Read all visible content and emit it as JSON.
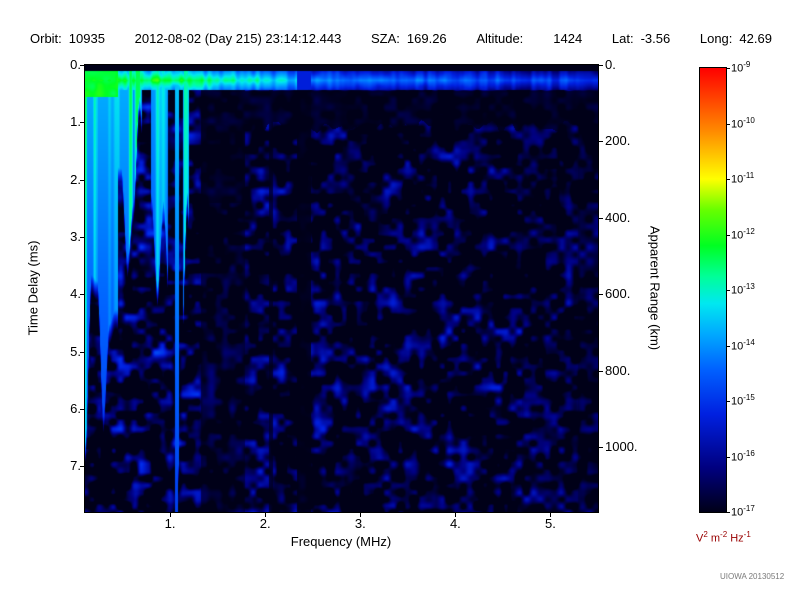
{
  "header": {
    "segments": [
      {
        "label": "Orbit:",
        "value": "10935"
      },
      {
        "label": "",
        "value": "2012-08-02 (Day 215) 23:14:12.443"
      },
      {
        "label": "SZA:",
        "value": "169.26"
      },
      {
        "label": "Altitude:",
        "value": "1424",
        "wide_gap": true
      },
      {
        "label": "Lat:",
        "value": "-3.56"
      },
      {
        "label": "Long:",
        "value": "42.69"
      }
    ]
  },
  "chart_data": {
    "type": "heatmap",
    "title": "",
    "xlabel": "Frequency (MHz)",
    "ylabel_left": "Time Delay (ms)",
    "ylabel_right": "Apparent Range (km)",
    "x_range_mhz": [
      0.105,
      5.5
    ],
    "y_range_ms": [
      0,
      7.8
    ],
    "km_per_ms": 150,
    "legend_position": "right",
    "x_ticks": [
      {
        "f": 1,
        "label": "1."
      },
      {
        "f": 2,
        "label": "2."
      },
      {
        "f": 3,
        "label": "3."
      },
      {
        "f": 4,
        "label": "4."
      },
      {
        "f": 5,
        "label": "5."
      }
    ],
    "y_ticks": [
      {
        "ms": 0,
        "label": "0."
      },
      {
        "ms": 1,
        "label": "1."
      },
      {
        "ms": 2,
        "label": "2."
      },
      {
        "ms": 3,
        "label": "3."
      },
      {
        "ms": 4,
        "label": "4."
      },
      {
        "ms": 5,
        "label": "5."
      },
      {
        "ms": 6,
        "label": "6."
      },
      {
        "ms": 7,
        "label": "7."
      }
    ],
    "right_ticks": [
      {
        "km": 0,
        "label": "0."
      },
      {
        "km": 200,
        "label": "200."
      },
      {
        "km": 400,
        "label": "400."
      },
      {
        "km": 600,
        "label": "600."
      },
      {
        "km": 800,
        "label": "800."
      },
      {
        "km": 1000,
        "label": "1000."
      }
    ],
    "colorbar": {
      "scale": "log10",
      "range_exp": [
        -17,
        -9
      ],
      "scale_exponents": [
        "-9",
        "-10",
        "-11",
        "-12",
        "-13",
        "-14",
        "-15",
        "-16",
        "-17"
      ],
      "units": [
        {
          "base": "V",
          "exp": "2"
        },
        {
          "base": "m",
          "exp": "-2"
        },
        {
          "base": "Hz",
          "exp": "-1"
        }
      ],
      "units_color": "#990000",
      "colormap": [
        [
          0.0,
          "#000018"
        ],
        [
          0.1,
          "#000080"
        ],
        [
          0.22,
          "#0020e0"
        ],
        [
          0.32,
          "#0060ff"
        ],
        [
          0.4,
          "#00a8ff"
        ],
        [
          0.47,
          "#00e8f0"
        ],
        [
          0.53,
          "#00ff99"
        ],
        [
          0.6,
          "#00ff22"
        ],
        [
          0.68,
          "#66ff00"
        ],
        [
          0.75,
          "#ffff00"
        ],
        [
          0.86,
          "#ff8800"
        ],
        [
          1.0,
          "#ff0000"
        ]
      ]
    },
    "seed": 20130512,
    "features": {
      "top_black_ms": 0.1,
      "surface_band": {
        "d0": 0.1,
        "d1": 0.42,
        "near_exp": -12.3,
        "mid_exp": -13.4,
        "far_exp": -14.1,
        "far_end_exp": -14.8,
        "f_near": 0.9,
        "f_break": 2.45
      },
      "stripes": {
        "f_end": 1.32,
        "base_exp": -14.3,
        "gain_exp": 2.0,
        "dim_per_ms": 0.17,
        "dense_f": 0.6,
        "solid_f": 0.45,
        "solid_d": 0.55,
        "solid_exp": -12.2
      },
      "shadow_gap": {
        "f_start": 1.32,
        "d_top": 0.45,
        "d_bot": 0.95
      },
      "dark_column": {
        "f0": 1.32,
        "f1": 1.78,
        "gain": 0.5,
        "upper_d": 2.4,
        "upper_gain": 0.4
      },
      "black_stripe": {
        "f0": 2.33,
        "f1": 2.48,
        "band_exp": -15.3
      },
      "thin_stripe": {
        "f0": 2.03,
        "f1": 2.08,
        "gain": 0.3
      },
      "right_fade": {
        "f0": 4.7,
        "gain": 0.85,
        "f1": 5.28,
        "gain2": 0.75
      },
      "body": {
        "blob_gain": 3.4,
        "threshold": 0.55,
        "w1": 0.62,
        "w2": 0.52,
        "cell1": 7,
        "cell2": 18
      }
    }
  },
  "watermark": "UIOWA 20130512"
}
